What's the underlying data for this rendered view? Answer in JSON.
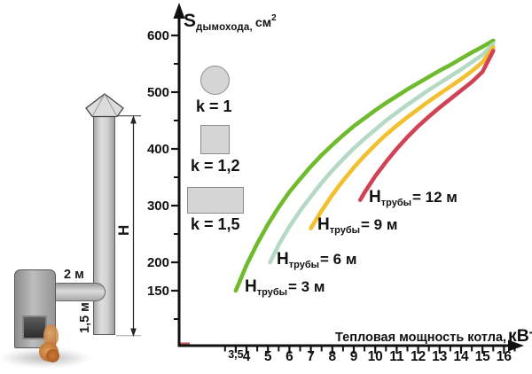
{
  "diagram": {
    "horizontal_length_label": "2 м",
    "vertical_offset_label": "1,5 м",
    "height_label": "Н"
  },
  "legend": {
    "items": [
      {
        "shape": "circle",
        "label": "k = 1"
      },
      {
        "shape": "square",
        "label": "k = 1,2"
      },
      {
        "shape": "rectangle",
        "label": "k = 1,5"
      }
    ]
  },
  "chart_data": {
    "type": "line",
    "ylabel": "Sдымохода, см²",
    "ylabel_parts": {
      "symbol": "S",
      "subscript": "дымохода,",
      "unit": "см",
      "unit_sup": "2"
    },
    "xlabel": "Тепловая мощность котла, кВт",
    "xlabel_parts": {
      "text": "Тепловая мощность котла,",
      "unit": "кВт"
    },
    "xlim": [
      3,
      16.8
    ],
    "ylim": [
      100,
      620
    ],
    "grid": false,
    "x_major_ticks": [
      4,
      5,
      6,
      7,
      8,
      9,
      10,
      11,
      12,
      13,
      14,
      15,
      16
    ],
    "x_extra_tick": {
      "value": 3.5,
      "label": "3,5"
    },
    "x_minor_ticks": [
      3,
      4.5,
      5.5,
      6.5,
      7.5,
      8.5,
      9.5,
      10.5,
      11.5,
      12.5,
      13.5,
      14.5,
      15.5,
      16.5
    ],
    "y_major_ticks": [
      {
        "value": 600,
        "label": "600"
      },
      {
        "value": 500,
        "label": "500"
      },
      {
        "value": 400,
        "label": "400"
      },
      {
        "value": 300,
        "label": "300"
      },
      {
        "value": 200,
        "label": "200"
      },
      {
        "value": 150,
        "label": "150"
      }
    ],
    "y_minor_ticks": [
      550,
      450,
      350,
      250,
      100
    ],
    "series": [
      {
        "name": "Нтрубы = 3 м",
        "label_prefix": "Н",
        "label_sub": "трубы",
        "label_rest": "= 3 м",
        "color": "#6fbb2d",
        "points": [
          [
            3.5,
            150
          ],
          [
            4,
            195
          ],
          [
            4.5,
            233
          ],
          [
            5,
            267
          ],
          [
            5.5,
            297
          ],
          [
            6,
            324
          ],
          [
            6.5,
            347
          ],
          [
            7,
            369
          ],
          [
            7.5,
            389
          ],
          [
            8,
            407
          ],
          [
            8.5,
            424
          ],
          [
            9,
            440
          ],
          [
            9.5,
            454
          ],
          [
            10,
            468
          ],
          [
            10.5,
            481
          ],
          [
            11,
            493
          ],
          [
            11.5,
            505
          ],
          [
            12,
            516
          ],
          [
            12.5,
            527
          ],
          [
            13,
            538
          ],
          [
            13.5,
            548
          ],
          [
            14,
            559
          ],
          [
            14.5,
            570
          ],
          [
            15,
            580
          ],
          [
            15.5,
            591
          ]
        ]
      },
      {
        "name": "Нтрубы = 6 м",
        "label_prefix": "Н",
        "label_sub": "трубы",
        "label_rest": "= 6 м",
        "color": "#b4d9c4",
        "points": [
          [
            5.1,
            200
          ],
          [
            5.5,
            231
          ],
          [
            6,
            263
          ],
          [
            6.5,
            291
          ],
          [
            7,
            316
          ],
          [
            7.5,
            340
          ],
          [
            8,
            362
          ],
          [
            8.5,
            382
          ],
          [
            9,
            401
          ],
          [
            9.5,
            418
          ],
          [
            10,
            434
          ],
          [
            10.5,
            450
          ],
          [
            11,
            464
          ],
          [
            11.5,
            478
          ],
          [
            12,
            491
          ],
          [
            12.5,
            504
          ],
          [
            13,
            516
          ],
          [
            13.5,
            528
          ],
          [
            14,
            540
          ],
          [
            14.5,
            553
          ],
          [
            15,
            566
          ],
          [
            15.5,
            585
          ]
        ]
      },
      {
        "name": "Нтрубы = 9 м",
        "label_prefix": "Н",
        "label_sub": "трубы",
        "label_rest": "= 9 м",
        "color": "#f2bf2e",
        "points": [
          [
            7,
            260
          ],
          [
            7.5,
            291
          ],
          [
            8,
            319
          ],
          [
            8.5,
            344
          ],
          [
            9,
            367
          ],
          [
            9.5,
            388
          ],
          [
            10,
            407
          ],
          [
            10.5,
            425
          ],
          [
            11,
            441
          ],
          [
            11.5,
            456
          ],
          [
            12,
            470
          ],
          [
            12.5,
            484
          ],
          [
            13,
            497
          ],
          [
            13.5,
            510
          ],
          [
            14,
            523
          ],
          [
            14.5,
            537
          ],
          [
            15,
            553
          ],
          [
            15.5,
            579
          ]
        ]
      },
      {
        "name": "Нтрубы = 12 м",
        "label_prefix": "Н",
        "label_sub": "трубы",
        "label_rest": "= 12 м",
        "color": "#d04355",
        "points": [
          [
            9.3,
            310
          ],
          [
            9.5,
            323
          ],
          [
            10,
            352
          ],
          [
            10.5,
            377
          ],
          [
            11,
            400
          ],
          [
            11.5,
            421
          ],
          [
            12,
            440
          ],
          [
            12.5,
            457
          ],
          [
            13,
            473
          ],
          [
            13.5,
            488
          ],
          [
            14,
            503
          ],
          [
            14.5,
            518
          ],
          [
            15,
            536
          ],
          [
            15.5,
            573
          ]
        ]
      }
    ]
  }
}
